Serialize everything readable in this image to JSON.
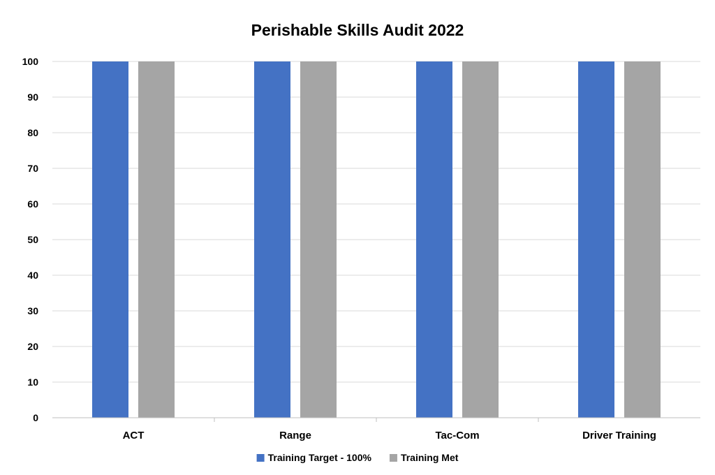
{
  "chart_data": {
    "type": "bar",
    "title": "Perishable Skills Audit 2022",
    "categories": [
      "ACT",
      "Range",
      "Tac-Com",
      "Driver Training"
    ],
    "series": [
      {
        "name": "Training Target - 100%",
        "values": [
          100,
          100,
          100,
          100
        ],
        "color": "#4472C4"
      },
      {
        "name": "Training Met",
        "values": [
          100,
          100,
          100,
          100
        ],
        "color": "#A5A5A5"
      }
    ],
    "yticks": [
      0,
      10,
      20,
      30,
      40,
      50,
      60,
      70,
      80,
      90,
      100
    ],
    "ylim": [
      0,
      100
    ],
    "grid": true,
    "legend": "bottom-center"
  }
}
